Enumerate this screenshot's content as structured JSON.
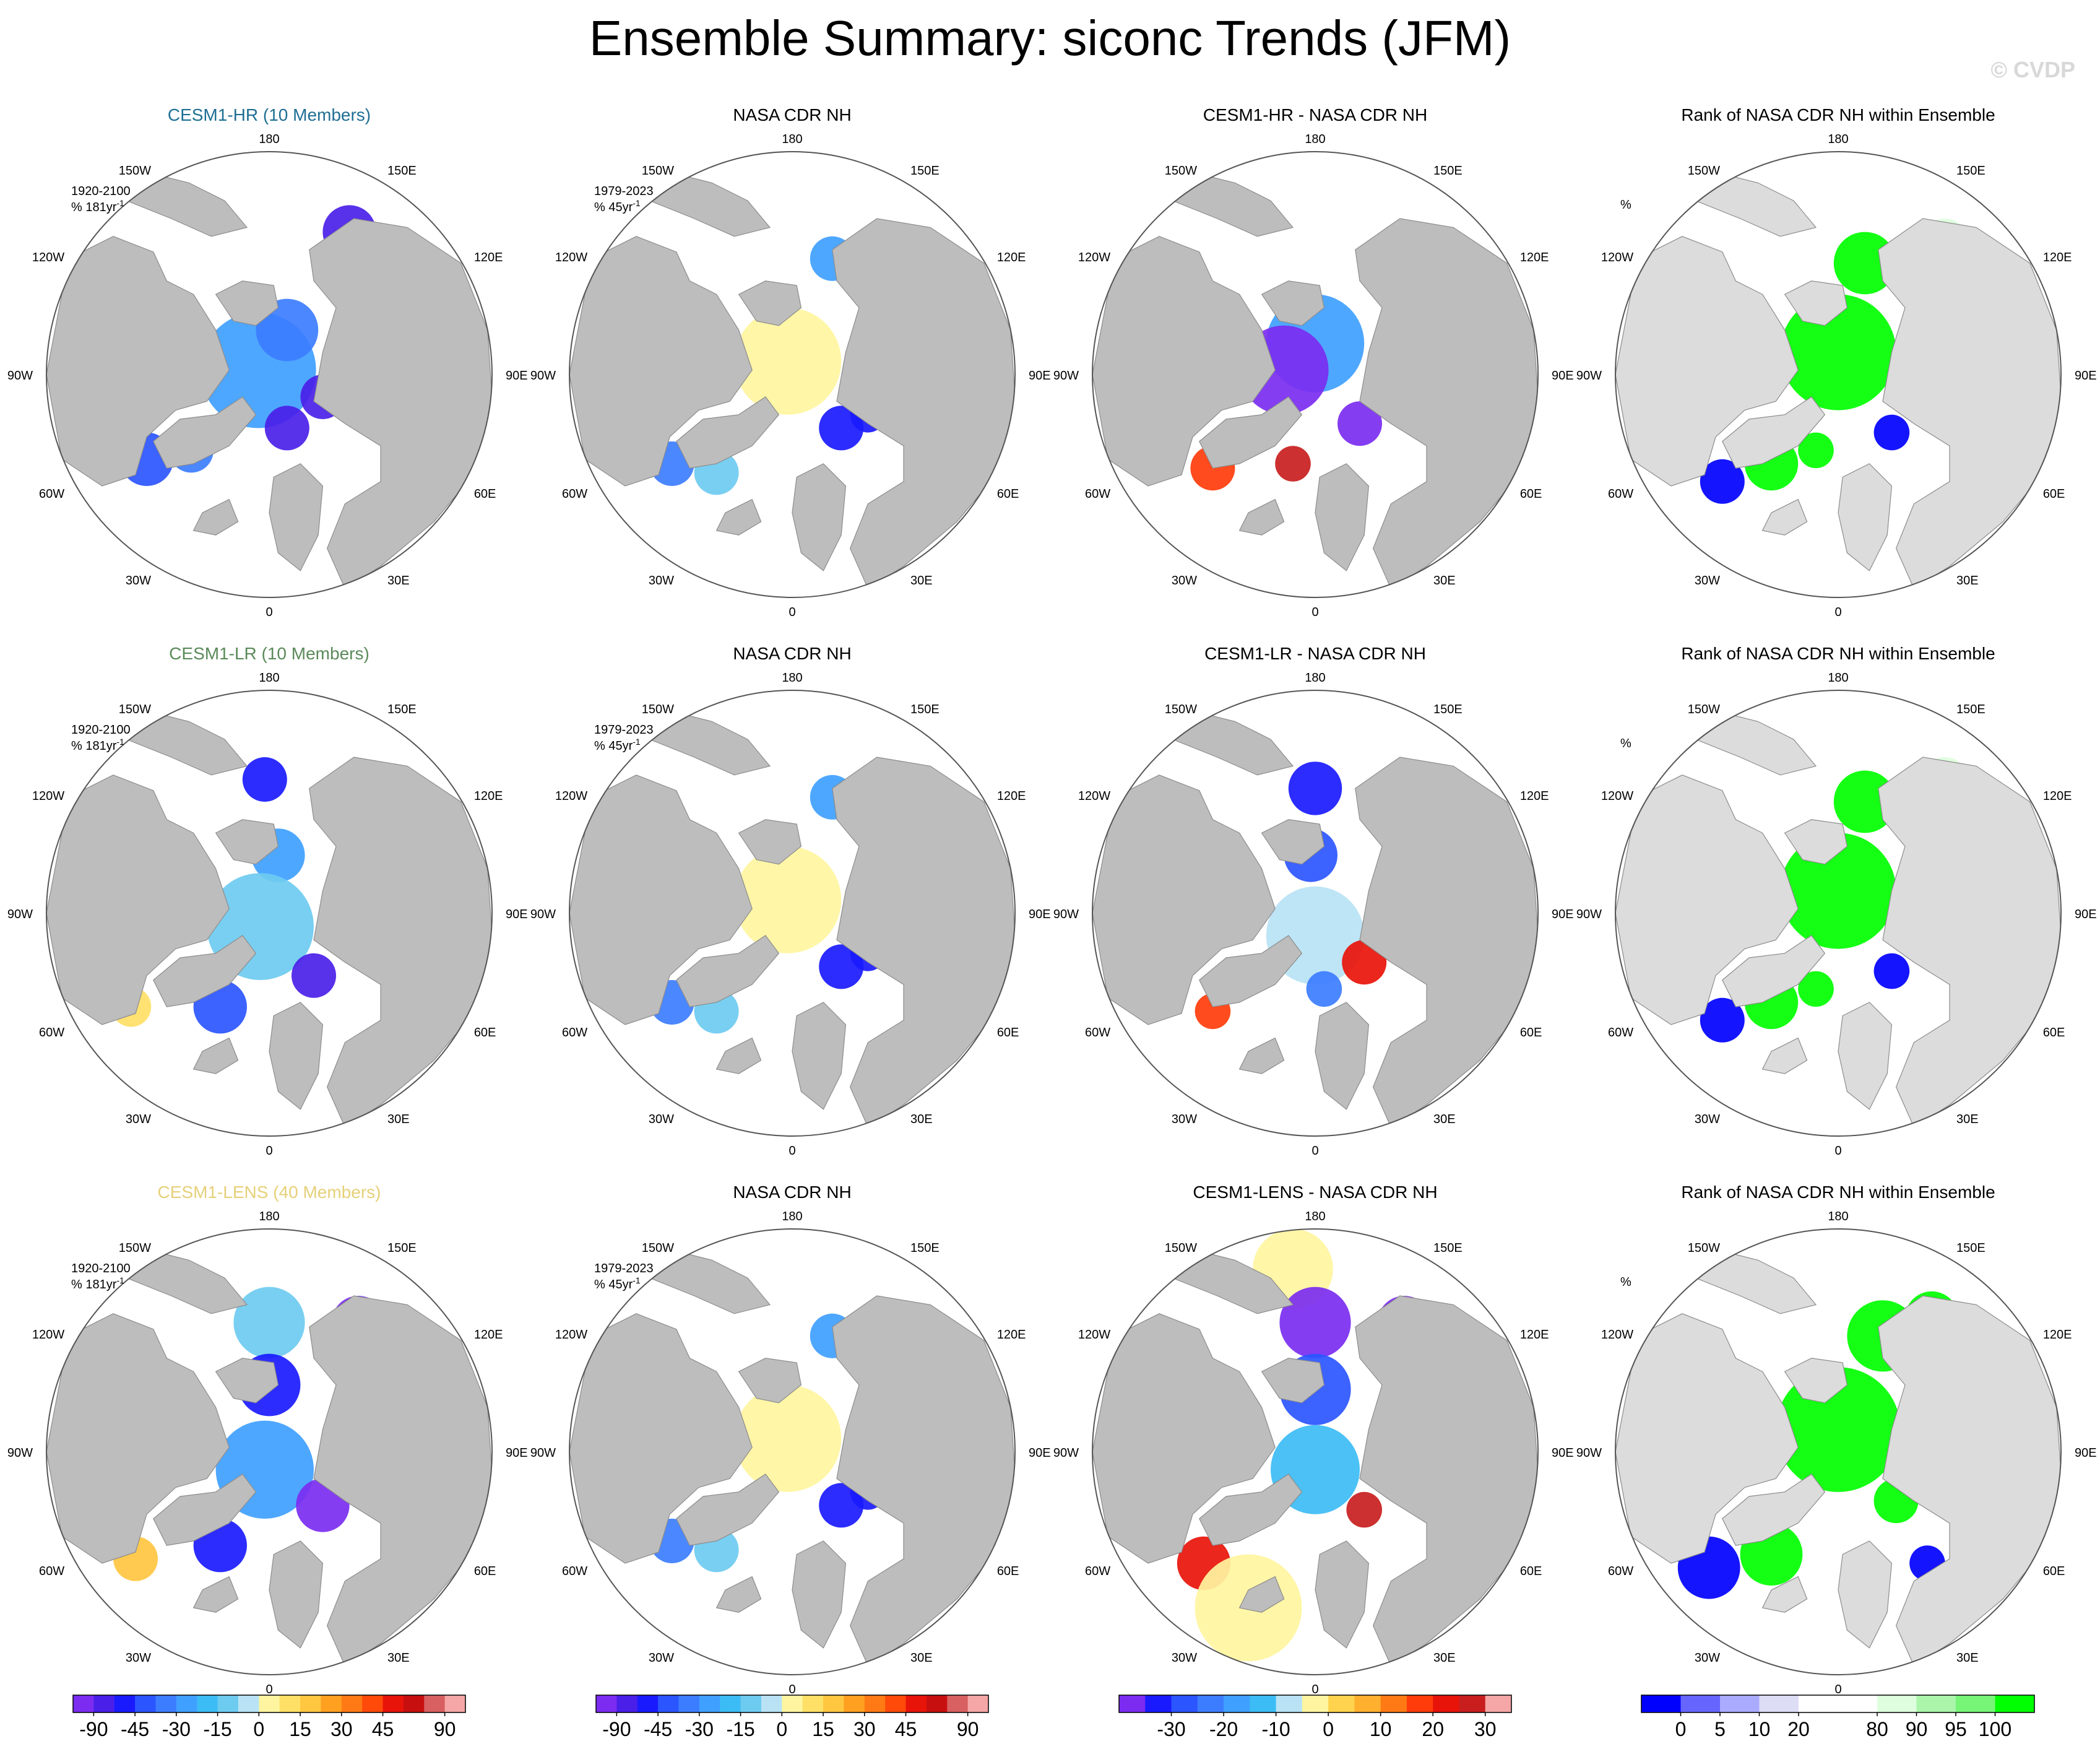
{
  "page": {
    "title": "Ensemble Summary: siconc Trends (JFM)",
    "watermark": "© CVDP"
  },
  "colors": {
    "land": "#bdbdbd",
    "rank_land": "#dcdcdc",
    "ocean": "#ffffff",
    "title_hr": "#1f6f94",
    "title_lr": "#5a8a5a",
    "title_lens": "#e6d07a"
  },
  "chart_data": {
    "type": "heatmap",
    "projection": "north-polar-stereographic",
    "season": "JFM",
    "variable": "siconc",
    "lon_labels": [
      "180",
      "150E",
      "120E",
      "90E",
      "60E",
      "30E",
      "0",
      "30W",
      "60W",
      "90W",
      "120W",
      "150W"
    ],
    "rows": [
      {
        "model": "CESM1-HR (10 Members)",
        "panels": [
          {
            "type": "model-trend",
            "title": "CESM1-HR (10 Members)",
            "period": "1920-2100",
            "units": "% 181yr",
            "units_sup": "-1",
            "colorbar": "trend"
          },
          {
            "type": "obs-trend",
            "title": "NASA CDR NH",
            "period": "1979-2023",
            "units": "% 45yr",
            "units_sup": "-1",
            "colorbar": "trend"
          },
          {
            "type": "difference",
            "title": "CESM1-HR - NASA CDR NH",
            "colorbar": "diff"
          },
          {
            "type": "rank",
            "title": "Rank of NASA CDR NH within Ensemble",
            "units": "%",
            "colorbar": "rank"
          }
        ]
      },
      {
        "model": "CESM1-LR (10 Members)",
        "panels": [
          {
            "type": "model-trend",
            "title": "CESM1-LR (10 Members)",
            "period": "1920-2100",
            "units": "% 181yr",
            "units_sup": "-1",
            "colorbar": "trend"
          },
          {
            "type": "obs-trend",
            "title": "NASA CDR NH",
            "period": "1979-2023",
            "units": "% 45yr",
            "units_sup": "-1",
            "colorbar": "trend"
          },
          {
            "type": "difference",
            "title": "CESM1-LR - NASA CDR NH",
            "colorbar": "diff"
          },
          {
            "type": "rank",
            "title": "Rank of NASA CDR NH within Ensemble",
            "units": "%",
            "colorbar": "rank"
          }
        ]
      },
      {
        "model": "CESM1-LENS (40 Members)",
        "panels": [
          {
            "type": "model-trend",
            "title": "CESM1-LENS (40 Members)",
            "period": "1920-2100",
            "units": "% 181yr",
            "units_sup": "-1",
            "colorbar": "trend"
          },
          {
            "type": "obs-trend",
            "title": "NASA CDR NH",
            "period": "1979-2023",
            "units": "% 45yr",
            "units_sup": "-1",
            "colorbar": "trend"
          },
          {
            "type": "difference",
            "title": "CESM1-LENS - NASA CDR NH",
            "colorbar": "diff"
          },
          {
            "type": "rank",
            "title": "Rank of NASA CDR NH within Ensemble",
            "units": "%",
            "colorbar": "rank"
          }
        ]
      }
    ],
    "colorbars": {
      "trend": {
        "colors": [
          "#7b2cf0",
          "#4a1fe8",
          "#1a1aff",
          "#2b55ff",
          "#3c7dff",
          "#3fa0ff",
          "#3cbcf5",
          "#6ecbf0",
          "#b9e3f5",
          "#fff5a0",
          "#ffe066",
          "#ffc640",
          "#ffa020",
          "#ff7a14",
          "#ff4a0a",
          "#e8140a",
          "#c80f0f",
          "#d86060",
          "#f5a6a6"
        ],
        "ticks": [
          "-90",
          "-45",
          "-30",
          "-15",
          "0",
          "15",
          "30",
          "45",
          "90"
        ],
        "tick_edges": [
          1,
          3,
          5,
          7,
          9,
          11,
          13,
          15,
          18
        ]
      },
      "diff": {
        "colors": [
          "#7b2cf0",
          "#1a1aff",
          "#2b55ff",
          "#3c7dff",
          "#3fa0ff",
          "#3cbcf5",
          "#b9e3f5",
          "#fff5a0",
          "#ffd34d",
          "#ffb02e",
          "#ff7a14",
          "#ff3c0a",
          "#e8140a",
          "#c81e1e",
          "#f5a6a6"
        ],
        "ticks": [
          "-30",
          "-20",
          "-10",
          "0",
          "10",
          "20",
          "30"
        ],
        "tick_edges": [
          2,
          4,
          6,
          8,
          10,
          12,
          14
        ]
      },
      "rank": {
        "colors": [
          "#0000ff",
          "#6666ff",
          "#aaaaff",
          "#ddddf5",
          "#ffffff",
          "#ffffff",
          "#ddffdd",
          "#aaf5aa",
          "#77f577",
          "#00ff00"
        ],
        "ticks": [
          "0",
          "5",
          "10",
          "20",
          "80",
          "90",
          "95",
          "100"
        ],
        "tick_edges": [
          1,
          2,
          3,
          4,
          6,
          7,
          8,
          9
        ]
      }
    }
  }
}
